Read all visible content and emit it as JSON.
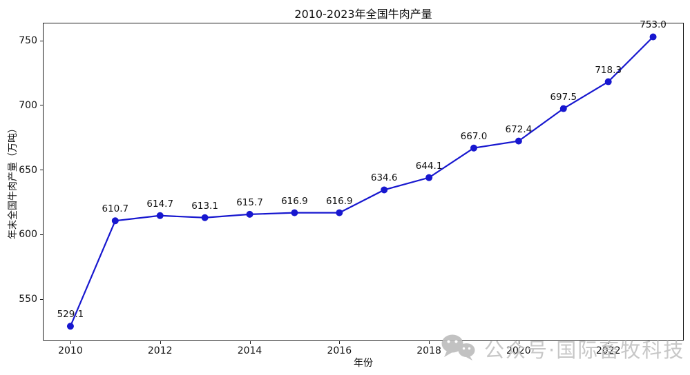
{
  "chart_data": {
    "type": "line",
    "title": "2010-2023年全国牛肉产量",
    "xlabel": "年份",
    "ylabel": "年末全国牛肉产量（万吨）",
    "x": [
      2010,
      2011,
      2012,
      2013,
      2014,
      2015,
      2016,
      2017,
      2018,
      2019,
      2020,
      2021,
      2022,
      2023
    ],
    "values": [
      529.1,
      610.7,
      614.7,
      613.1,
      615.7,
      616.9,
      616.9,
      634.6,
      644.1,
      667.0,
      672.4,
      697.5,
      718.3,
      753.0
    ],
    "point_labels": [
      "529.1",
      "610.7",
      "614.7",
      "613.1",
      "615.7",
      "616.9",
      "616.9",
      "634.6",
      "644.1",
      "667.0",
      "672.4",
      "697.5",
      "718.3",
      "753.0"
    ],
    "xticks": [
      2010,
      2012,
      2014,
      2016,
      2018,
      2020,
      2022
    ],
    "yticks": [
      550,
      600,
      650,
      700,
      750
    ],
    "xlim": [
      2009.4,
      2023.7
    ],
    "ylim": [
      517.5,
      763.4
    ],
    "grid": false,
    "legend": null,
    "line_color": "#1717cf",
    "marker": "circle",
    "marker_color": "#1717cf",
    "axis_color": "#1a1a1a"
  },
  "watermark": {
    "icon": "wechat-icon",
    "text": "公众号·国际畜牧科技",
    "color": "#c3c3c3"
  }
}
